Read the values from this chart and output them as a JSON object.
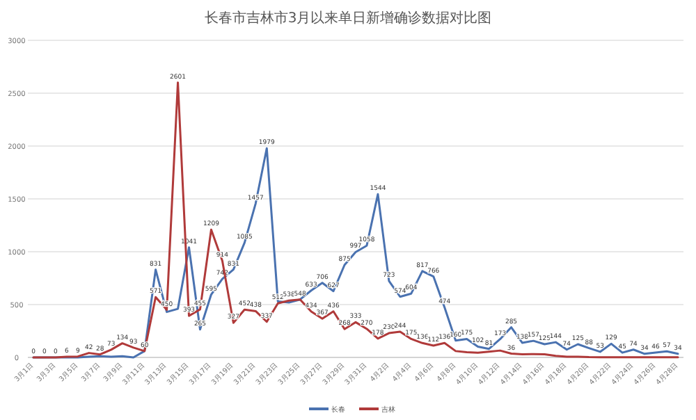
{
  "chart_data": {
    "type": "line",
    "title": "长春市吉林市3月以来单日新增确诊数据对比图",
    "categories": [
      "3月1日",
      null,
      "3月3日",
      null,
      "3月5日",
      null,
      "3月7日",
      null,
      "3月9日",
      null,
      "3月11日",
      null,
      "3月13日",
      null,
      "3月15日",
      null,
      "3月17日",
      null,
      "3月19日",
      null,
      "3月21日",
      null,
      "3月23日",
      null,
      "3月25日",
      null,
      "3月27日",
      null,
      "3月29日",
      null,
      "3月31日",
      null,
      "4月2日",
      null,
      "4月4日",
      null,
      "4月6日",
      null,
      "4月8日",
      null,
      "4月10日",
      null,
      "4月12日",
      null,
      "4月14日",
      null,
      "4月16日",
      null,
      "4月18日",
      null,
      "4月20日",
      null,
      "4月22日",
      null,
      "4月24日",
      null,
      "4月26日",
      null,
      "4月28日"
    ],
    "series": [
      {
        "name": "长春",
        "color": "#4a72b0",
        "values": [
          0,
          0,
          0,
          0,
          0,
          7,
          12,
          7,
          12,
          0,
          60,
          831,
          430,
          460,
          1041,
          265,
          595,
          742,
          831,
          1085,
          1457,
          1979,
          530,
          520,
          548,
          633,
          706,
          627,
          875,
          997,
          1058,
          1544,
          723,
          574,
          604,
          817,
          766,
          474,
          160,
          175,
          102,
          81,
          173,
          285,
          138,
          157,
          125,
          144,
          74,
          125,
          88,
          53,
          129,
          45,
          74,
          34,
          46,
          57,
          34
        ],
        "value_labels": [
          null,
          null,
          null,
          null,
          null,
          null,
          null,
          null,
          null,
          null,
          null,
          "831",
          null,
          null,
          "1041",
          "265",
          "595",
          "742",
          "831",
          "1085",
          "1457",
          "1979",
          null,
          null,
          null,
          "633",
          "706",
          "627",
          "875",
          "997",
          "1058",
          "1544",
          "723",
          "574",
          "604",
          "817",
          "766",
          "474",
          "160",
          "175",
          "102",
          "81",
          "173",
          "285",
          "138",
          "157",
          "125",
          "144",
          "74",
          "125",
          "88",
          "53",
          "129",
          "45",
          "74",
          "34",
          "46",
          "57",
          "34"
        ]
      },
      {
        "name": "吉林",
        "color": "#b03a3a",
        "values": [
          0,
          0,
          0,
          6,
          9,
          42,
          28,
          73,
          134,
          93,
          60,
          571,
          450,
          2601,
          393,
          455,
          1209,
          914,
          327,
          452,
          438,
          337,
          512,
          538,
          548,
          434,
          367,
          436,
          268,
          333,
          270,
          178,
          230,
          244,
          175,
          136,
          112,
          136,
          60,
          50,
          45,
          55,
          65,
          36,
          30,
          32,
          30,
          15,
          6,
          7,
          3,
          2,
          2,
          2,
          1,
          2,
          1,
          1,
          1
        ],
        "value_labels": [
          "0",
          "0",
          "0",
          "6",
          "9",
          "42",
          "28",
          "73",
          "134",
          "93",
          "60",
          "571",
          "450",
          "2601",
          "393",
          "455",
          "1209",
          "914",
          "327",
          "452",
          "438",
          "337",
          "512",
          "538",
          "548",
          "434",
          "367",
          "436",
          "268",
          "333",
          "270",
          "178",
          "230",
          "244",
          "175",
          "136",
          "112",
          "136",
          null,
          null,
          null,
          null,
          null,
          "36",
          null,
          null,
          null,
          null,
          null,
          null,
          null,
          null,
          null,
          null,
          null,
          null,
          null,
          null,
          null
        ]
      }
    ],
    "ylim": [
      0,
      3000
    ],
    "yticks": [
      0,
      500,
      1000,
      1500,
      2000,
      2500,
      3000
    ],
    "grid": "y",
    "legend": "bottom"
  }
}
